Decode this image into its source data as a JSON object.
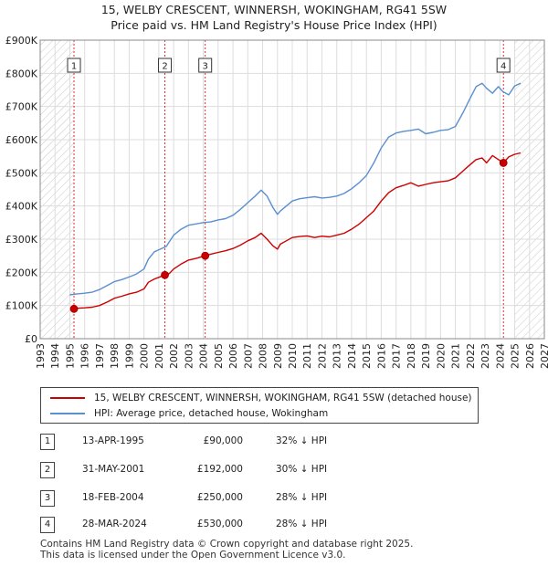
{
  "title_line1": "15, WELBY CRESCENT, WINNERSH, WOKINGHAM, RG41 5SW",
  "title_line2": "Price paid vs. HM Land Registry's House Price Index (HPI)",
  "chart_data": {
    "type": "line",
    "title": "15, WELBY CRESCENT, WINNERSH, WOKINGHAM, RG41 5SW — Price paid vs. HM Land Registry's House Price Index (HPI)",
    "xlabel": "",
    "ylabel": "",
    "xlim": [
      1993,
      2027
    ],
    "ylim": [
      0,
      900000
    ],
    "x_ticks": [
      1993,
      1994,
      1995,
      1996,
      1997,
      1998,
      1999,
      2000,
      2001,
      2002,
      2003,
      2004,
      2005,
      2006,
      2007,
      2008,
      2009,
      2010,
      2011,
      2012,
      2013,
      2014,
      2015,
      2016,
      2017,
      2018,
      2019,
      2020,
      2021,
      2022,
      2023,
      2024,
      2025,
      2026,
      2027
    ],
    "y_ticks": [
      {
        "value": 0,
        "label": "£0"
      },
      {
        "value": 100000,
        "label": "£100K"
      },
      {
        "value": 200000,
        "label": "£200K"
      },
      {
        "value": 300000,
        "label": "£300K"
      },
      {
        "value": 400000,
        "label": "£400K"
      },
      {
        "value": 500000,
        "label": "£500K"
      },
      {
        "value": 600000,
        "label": "£600K"
      },
      {
        "value": 700000,
        "label": "£700K"
      },
      {
        "value": 800000,
        "label": "£800K"
      },
      {
        "value": 900000,
        "label": "£900K"
      }
    ],
    "hatched_ranges": [
      [
        1993,
        1995.28
      ],
      [
        2025.0,
        2027
      ]
    ],
    "series": [
      {
        "name": "15, WELBY CRESCENT, WINNERSH, WOKINGHAM, RG41 5SW (detached house)",
        "color": "#cc0000",
        "x": [
          1995.28,
          1995.6,
          1996,
          1996.5,
          1997,
          1997.5,
          1998,
          1998.5,
          1999,
          1999.5,
          2000,
          2000.3,
          2000.7,
          2001.0,
          2001.41,
          2001.7,
          2002,
          2002.5,
          2003,
          2003.5,
          2004.13,
          2004.5,
          2005,
          2005.5,
          2006,
          2006.5,
          2007,
          2007.5,
          2007.9,
          2008.3,
          2008.7,
          2009.0,
          2009.2,
          2009.6,
          2010,
          2010.5,
          2011,
          2011.5,
          2012,
          2012.5,
          2013,
          2013.5,
          2014,
          2014.5,
          2015,
          2015.5,
          2016,
          2016.5,
          2017,
          2017.5,
          2018,
          2018.5,
          2019,
          2019.5,
          2020,
          2020.5,
          2021,
          2021.5,
          2022,
          2022.4,
          2022.8,
          2023.1,
          2023.5,
          2023.9,
          2024.24,
          2024.6,
          2025.0,
          2025.4
        ],
        "values": [
          90000,
          92000,
          93000,
          95000,
          100000,
          110000,
          122000,
          128000,
          135000,
          140000,
          150000,
          170000,
          180000,
          185000,
          192000,
          196000,
          210000,
          225000,
          237000,
          242000,
          250000,
          255000,
          260000,
          265000,
          272000,
          282000,
          295000,
          305000,
          318000,
          300000,
          280000,
          270000,
          285000,
          295000,
          305000,
          308000,
          310000,
          305000,
          309000,
          307000,
          312000,
          318000,
          330000,
          345000,
          365000,
          385000,
          415000,
          440000,
          455000,
          462000,
          470000,
          460000,
          465000,
          470000,
          473000,
          476000,
          485000,
          505000,
          525000,
          540000,
          545000,
          530000,
          552000,
          540000,
          530000,
          548000,
          556000,
          560000
        ]
      },
      {
        "name": "HPI: Average price, detached house, Wokingham",
        "color": "#5b8fd0",
        "x": [
          1995.0,
          1995.5,
          1996,
          1996.5,
          1997,
          1997.5,
          1998,
          1998.5,
          1999,
          1999.5,
          2000,
          2000.3,
          2000.7,
          2001.0,
          2001.5,
          2002,
          2002.5,
          2003,
          2003.5,
          2004,
          2004.5,
          2005,
          2005.5,
          2006,
          2006.5,
          2007,
          2007.5,
          2007.9,
          2008.3,
          2008.7,
          2009.0,
          2009.2,
          2009.6,
          2010,
          2010.5,
          2011,
          2011.5,
          2012,
          2012.5,
          2013,
          2013.5,
          2014,
          2014.5,
          2015,
          2015.5,
          2016,
          2016.5,
          2017,
          2017.5,
          2018,
          2018.5,
          2019,
          2019.5,
          2020,
          2020.5,
          2021,
          2021.5,
          2022,
          2022.4,
          2022.8,
          2023.1,
          2023.5,
          2023.9,
          2024.2,
          2024.6,
          2025.0,
          2025.4
        ],
        "values": [
          132000,
          135000,
          137000,
          140000,
          148000,
          160000,
          172000,
          178000,
          186000,
          195000,
          210000,
          240000,
          262000,
          268000,
          278000,
          312000,
          330000,
          342000,
          346000,
          350000,
          352000,
          358000,
          362000,
          372000,
          390000,
          410000,
          430000,
          448000,
          430000,
          395000,
          375000,
          385000,
          400000,
          415000,
          422000,
          425000,
          428000,
          424000,
          426000,
          430000,
          438000,
          452000,
          470000,
          492000,
          530000,
          575000,
          608000,
          620000,
          625000,
          628000,
          632000,
          618000,
          622000,
          628000,
          630000,
          640000,
          680000,
          725000,
          760000,
          770000,
          755000,
          740000,
          760000,
          745000,
          735000,
          762000,
          770000
        ]
      }
    ],
    "sales": [
      {
        "id": "1",
        "x": 1995.28,
        "value": 90000
      },
      {
        "id": "2",
        "x": 2001.41,
        "value": 192000
      },
      {
        "id": "3",
        "x": 2004.13,
        "value": 250000
      },
      {
        "id": "4",
        "x": 2024.24,
        "value": 530000
      }
    ]
  },
  "legend": {
    "property": "15, WELBY CRESCENT, WINNERSH, WOKINGHAM, RG41 5SW (detached house)",
    "hpi": "HPI: Average price, detached house, Wokingham"
  },
  "transactions": [
    {
      "num": "1",
      "date": "13-APR-1995",
      "price": "£90,000",
      "hpi": "32% ↓ HPI"
    },
    {
      "num": "2",
      "date": "31-MAY-2001",
      "price": "£192,000",
      "hpi": "30% ↓ HPI"
    },
    {
      "num": "3",
      "date": "18-FEB-2004",
      "price": "£250,000",
      "hpi": "28% ↓ HPI"
    },
    {
      "num": "4",
      "date": "28-MAR-2024",
      "price": "£530,000",
      "hpi": "28% ↓ HPI"
    }
  ],
  "footer": {
    "line1": "Contains HM Land Registry data © Crown copyright and database right 2025.",
    "line2": "This data is licensed under the Open Government Licence v3.0."
  },
  "colors": {
    "property": "#cc0000",
    "hpi": "#5b8fd0",
    "grid": "#dddddd",
    "marker_line": "#cc0000"
  }
}
